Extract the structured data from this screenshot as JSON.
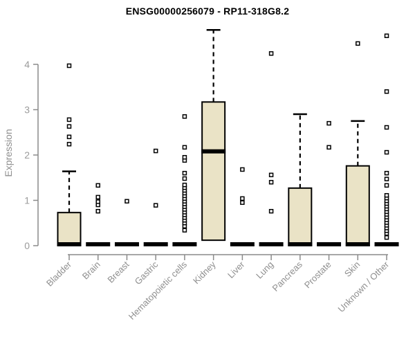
{
  "title": "ENSG00000256079 - RP11-318G8.2",
  "chart_data": {
    "type": "boxplot",
    "title": "ENSG00000256079 - RP11-318G8.2",
    "xlabel": "",
    "ylabel": "Expression",
    "ylim": [
      0,
      4.8
    ],
    "y_ticks": [
      0,
      1,
      2,
      3,
      4
    ],
    "grid": false,
    "legend": false,
    "colors": {
      "box_fill": "#EAE3C6",
      "box_border": "#000000",
      "median": "#000000",
      "whisker": "#000000",
      "outlier_border": "#000000",
      "outlier_fill": "#FFFFFF",
      "axis": "#8A8A8A",
      "tick_label": "#9B9B9B",
      "category_label": "#8F8F8F",
      "title": "#000000",
      "background": "#FFFFFF"
    },
    "categories": [
      "Bladder",
      "Brain",
      "Breast",
      "Gastric",
      "Hematopoietic cells",
      "Kidney",
      "Liver",
      "Lung",
      "Pancreas",
      "Prostate",
      "Skin",
      "Unknown / Other"
    ],
    "boxes": [
      {
        "category": "Bladder",
        "q1": 0,
        "median": 0,
        "q3": 0.73,
        "whisker_low": 0,
        "whisker_high": 1.64,
        "outliers": [
          2.24,
          2.4,
          2.63,
          2.78,
          3.97
        ]
      },
      {
        "category": "Brain",
        "q1": 0,
        "median": 0,
        "q3": 0,
        "whisker_low": 0,
        "whisker_high": 0,
        "outliers": [
          0.76,
          0.9,
          0.97,
          1.07,
          1.33
        ]
      },
      {
        "category": "Breast",
        "q1": 0,
        "median": 0,
        "q3": 0,
        "whisker_low": 0,
        "whisker_high": 0,
        "outliers": [
          0.98
        ]
      },
      {
        "category": "Gastric",
        "q1": 0,
        "median": 0,
        "q3": 0,
        "whisker_low": 0,
        "whisker_high": 0,
        "outliers": [
          0.89,
          2.09
        ]
      },
      {
        "category": "Hematopoietic cells",
        "q1": 0,
        "median": 0,
        "q3": 0,
        "whisker_low": 0,
        "whisker_high": 0,
        "outliers": [
          0.34,
          0.43,
          0.5,
          0.56,
          0.62,
          0.68,
          0.74,
          0.8,
          0.86,
          0.92,
          0.98,
          1.04,
          1.1,
          1.16,
          1.22,
          1.28,
          1.34,
          1.48,
          1.6,
          1.88,
          1.95,
          2.17,
          2.85
        ]
      },
      {
        "category": "Kidney",
        "q1": 0.12,
        "median": 2.05,
        "q3": 3.17,
        "whisker_low": 0.12,
        "whisker_high": 4.76,
        "outliers": []
      },
      {
        "category": "Liver",
        "q1": 0,
        "median": 0,
        "q3": 0,
        "whisker_low": 0,
        "whisker_high": 0,
        "outliers": [
          0.95,
          1.04,
          1.68
        ]
      },
      {
        "category": "Lung",
        "q1": 0,
        "median": 0,
        "q3": 0,
        "whisker_low": 0,
        "whisker_high": 0,
        "outliers": [
          0.76,
          1.4,
          1.56,
          4.24
        ]
      },
      {
        "category": "Pancreas",
        "q1": 0,
        "median": 0,
        "q3": 1.27,
        "whisker_low": 0,
        "whisker_high": 2.9,
        "outliers": []
      },
      {
        "category": "Prostate",
        "q1": 0,
        "median": 0,
        "q3": 0,
        "whisker_low": 0,
        "whisker_high": 0,
        "outliers": [
          2.17,
          2.7
        ]
      },
      {
        "category": "Skin",
        "q1": 0,
        "median": 0,
        "q3": 1.76,
        "whisker_low": 0,
        "whisker_high": 2.75,
        "outliers": [
          4.46
        ]
      },
      {
        "category": "Unknown / Other",
        "q1": 0,
        "median": 0,
        "q3": 0,
        "whisker_low": 0,
        "whisker_high": 0,
        "outliers": [
          0.18,
          0.27,
          0.33,
          0.39,
          0.45,
          0.51,
          0.57,
          0.63,
          0.69,
          0.75,
          0.81,
          0.87,
          0.93,
          0.99,
          1.05,
          1.11,
          1.33,
          1.47,
          1.6,
          2.06,
          2.61,
          3.4,
          4.63
        ]
      }
    ]
  }
}
